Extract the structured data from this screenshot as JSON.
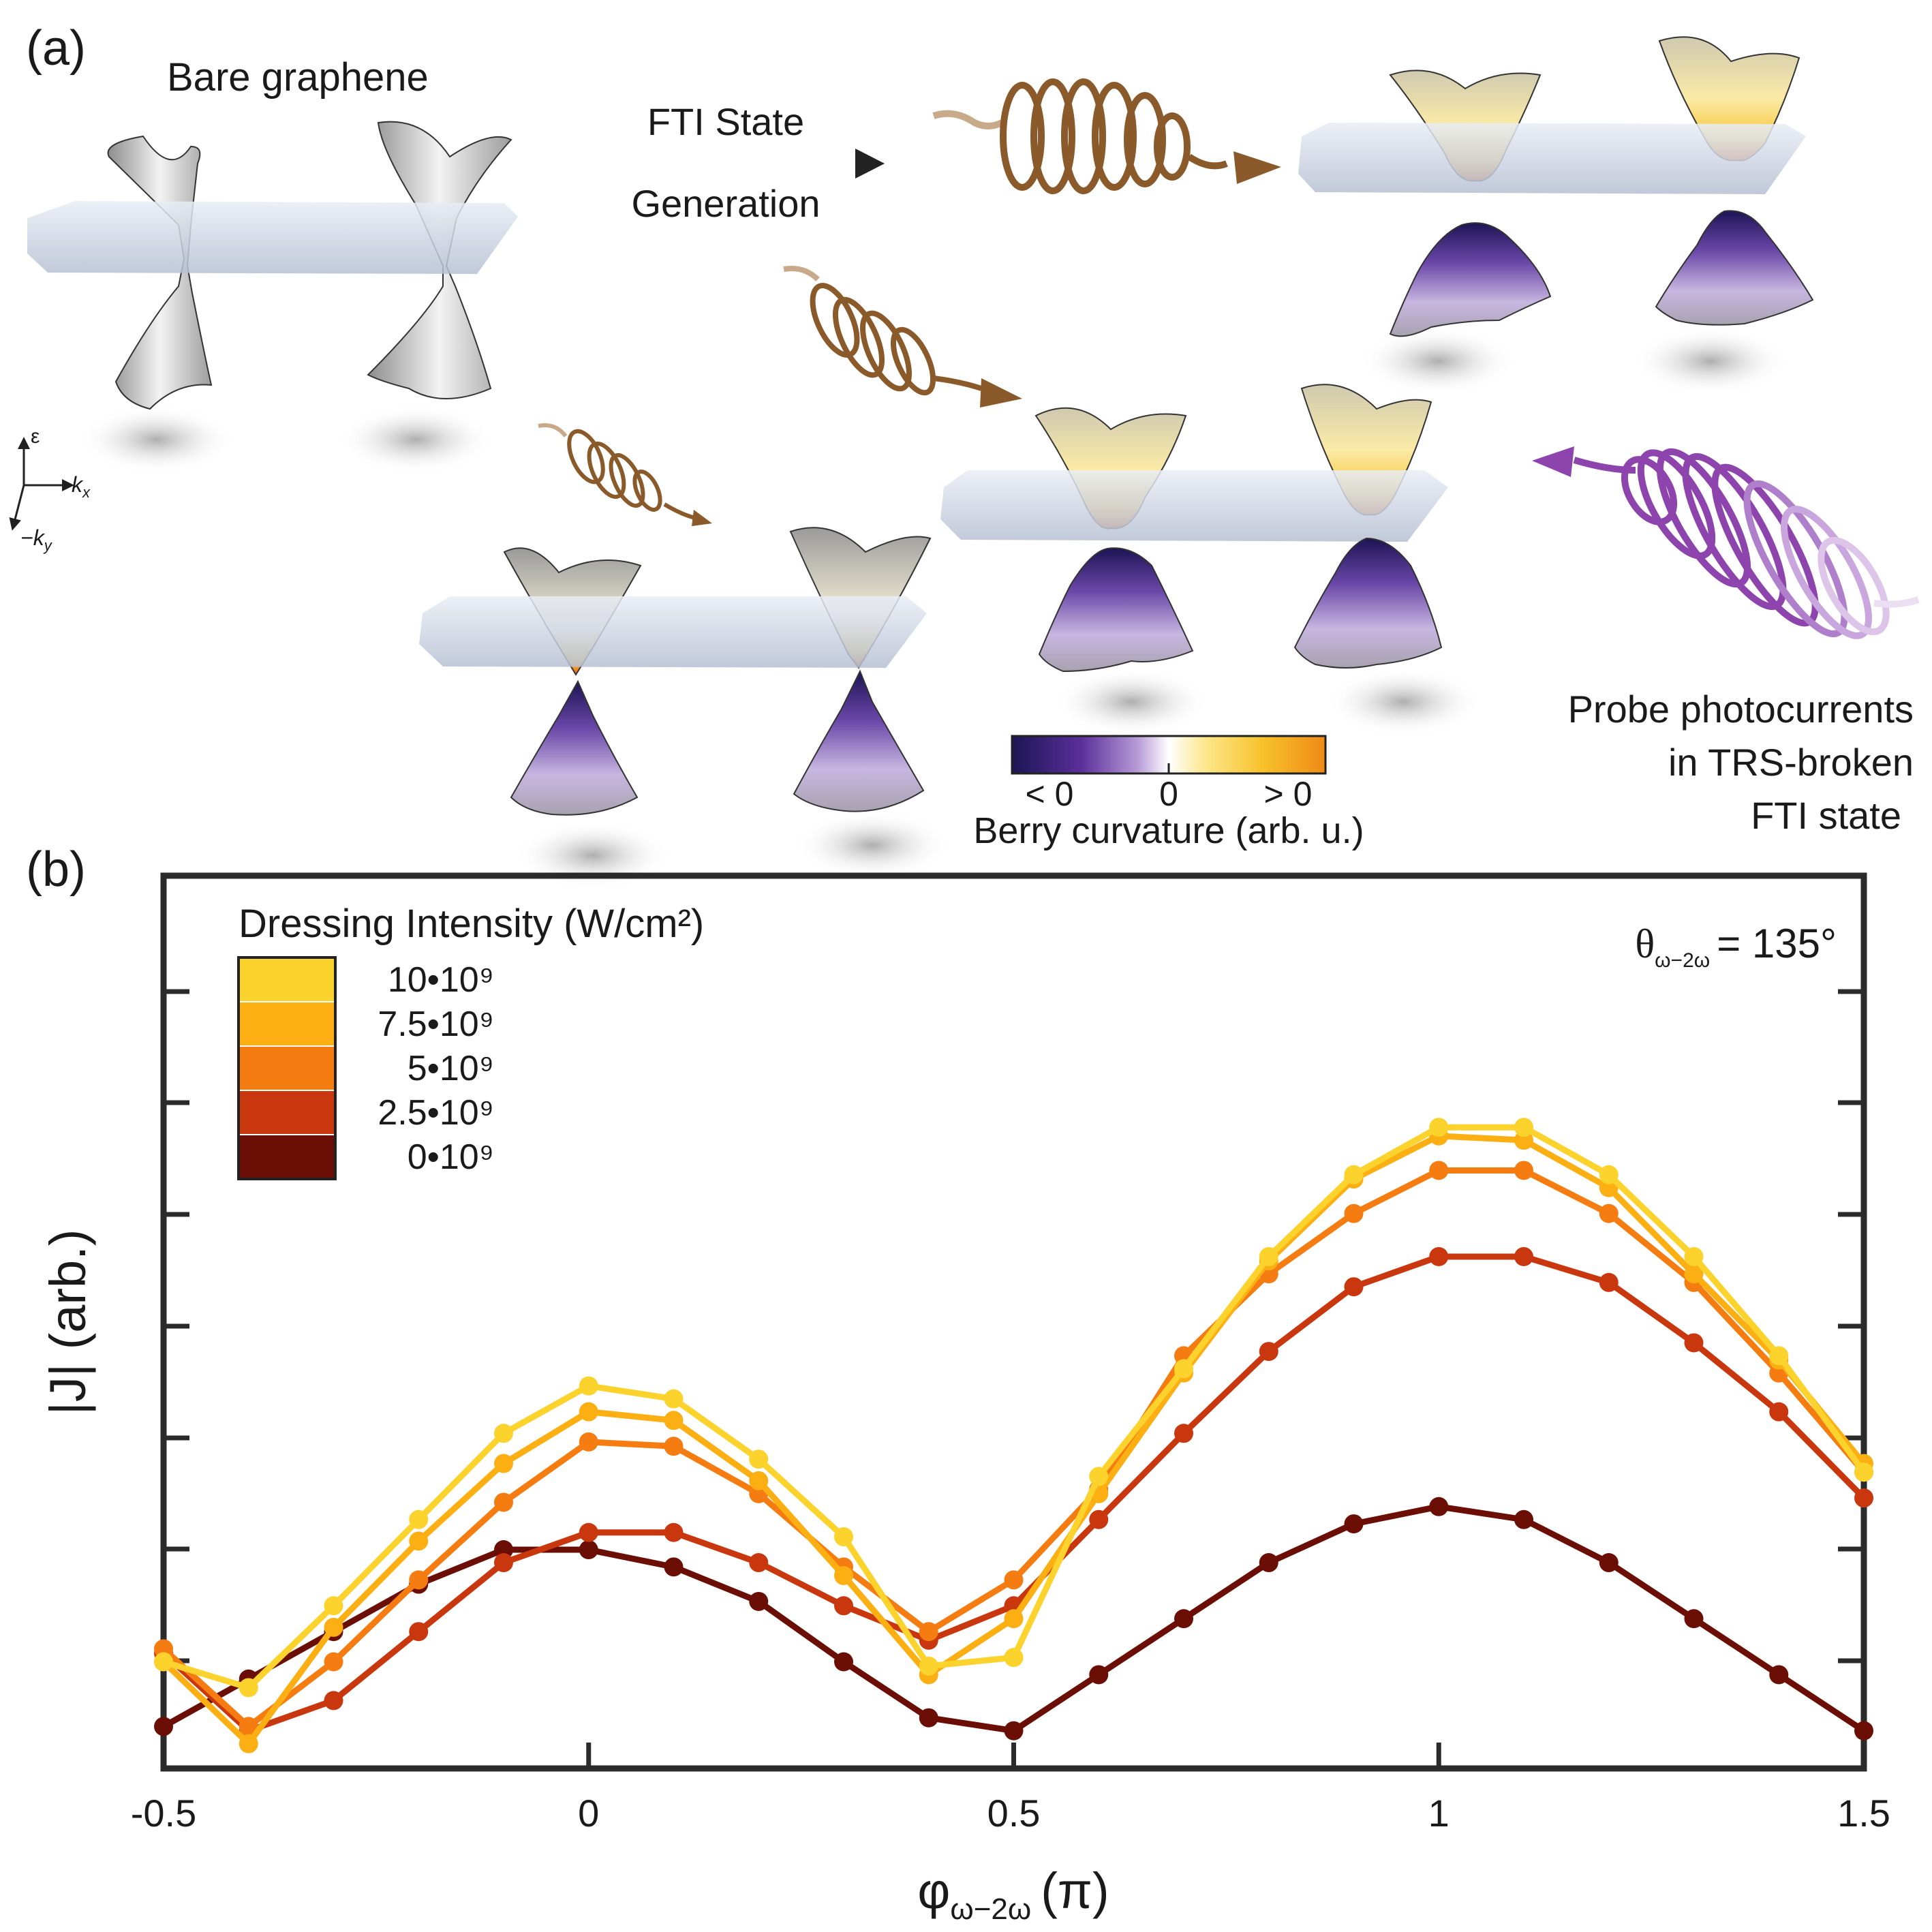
{
  "panel_a": {
    "label": "(a)",
    "bare_graphene": "Bare graphene",
    "arrow_line1": "FTI State",
    "arrow_line2": "Generation",
    "axis_epsilon": "ε",
    "axis_kx": "k",
    "axis_kx_sub": "x",
    "axis_ky": "−k",
    "axis_ky_sub": "y",
    "colorbar": {
      "left": "< 0",
      "center": "0",
      "right": "> 0",
      "title": "Berry curvature (arb. u.)",
      "colors": [
        "#1c1554",
        "#5a2f9a",
        "#b79ad6",
        "#ffffff",
        "#fde68a",
        "#f7c22a",
        "#ef8a17"
      ]
    },
    "probe_line1": "Probe photocurrents",
    "probe_line2": "in TRS-broken",
    "probe_line3": "FTI state",
    "colors": {
      "pump": "#8a5a2b",
      "probe": "#8e44ad"
    }
  },
  "panel_b": {
    "label": "(b)",
    "theta_label": "θ",
    "theta_sub": "ω−2ω",
    "theta_value": "= 135°",
    "legend_title": "Dressing Intensity (W/cm²)"
  },
  "chart_data": {
    "type": "line",
    "xlabel": "φ",
    "xlabel_sub": "ω−2ω",
    "xlabel_unit": "(π)",
    "ylabel": "|J| (arb.)",
    "xlim": [
      -0.5,
      1.5
    ],
    "ylim": [
      0,
      10
    ],
    "xticks": [
      "-0.5",
      "0",
      "0.5",
      "1",
      "1.5"
    ],
    "x": [
      -0.5,
      -0.4,
      -0.3,
      -0.2,
      -0.1,
      0,
      0.1,
      0.2,
      0.3,
      0.4,
      0.5,
      0.6,
      0.7,
      0.8,
      0.9,
      1.0,
      1.1,
      1.2,
      1.3,
      1.4,
      1.5
    ],
    "series": [
      {
        "name": "0•10⁹",
        "color": "#6b0e05",
        "values": [
          0.25,
          0.8,
          1.35,
          1.9,
          2.3,
          2.3,
          2.1,
          1.7,
          1.0,
          0.35,
          0.2,
          0.85,
          1.5,
          2.15,
          2.6,
          2.8,
          2.65,
          2.15,
          1.5,
          0.85,
          0.2
        ]
      },
      {
        "name": "2.5•10⁹",
        "color": "#c9370e",
        "values": [
          1.1,
          0.2,
          0.55,
          1.35,
          2.15,
          2.5,
          2.5,
          2.15,
          1.65,
          1.25,
          1.65,
          2.65,
          3.65,
          4.6,
          5.35,
          5.7,
          5.7,
          5.4,
          4.7,
          3.9,
          2.9
        ]
      },
      {
        "name": "5•10⁹",
        "color": "#f57c10",
        "values": [
          1.15,
          0.25,
          1.0,
          1.95,
          2.85,
          3.55,
          3.5,
          2.95,
          2.1,
          1.35,
          1.95,
          3.0,
          4.55,
          5.5,
          6.2,
          6.7,
          6.7,
          6.2,
          5.4,
          4.35,
          3.2
        ]
      },
      {
        "name": "7.5•10⁹",
        "color": "#fbaf12",
        "values": [
          1.0,
          0.05,
          1.4,
          2.4,
          3.3,
          3.9,
          3.8,
          3.1,
          2.0,
          0.85,
          1.5,
          2.95,
          4.35,
          5.65,
          6.6,
          7.1,
          7.05,
          6.5,
          5.5,
          4.5,
          3.3
        ]
      },
      {
        "name": "10•10⁹",
        "color": "#fcd22c",
        "values": [
          1.0,
          0.7,
          1.65,
          2.65,
          3.65,
          4.2,
          4.05,
          3.35,
          2.45,
          0.95,
          1.05,
          3.15,
          4.4,
          5.7,
          6.65,
          7.2,
          7.2,
          6.65,
          5.7,
          4.55,
          3.2
        ]
      }
    ],
    "legend_position": "top-left",
    "grid": false
  }
}
